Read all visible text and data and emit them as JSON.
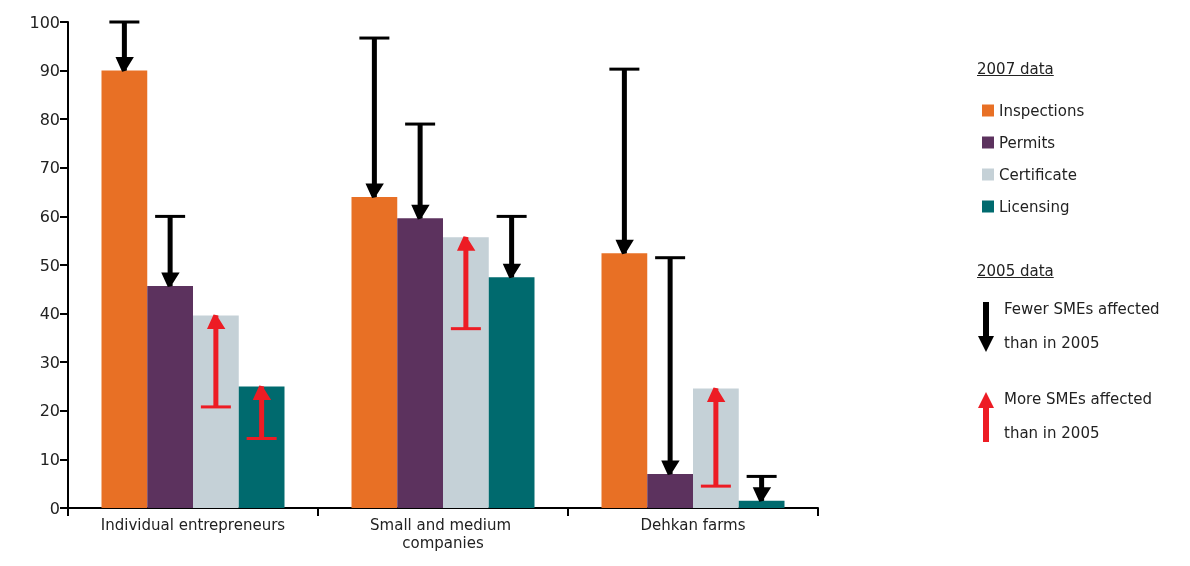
{
  "chart_data": {
    "type": "bar",
    "categories": [
      "Individual entrepreneurs",
      "Small and medium companies",
      "Dehkan farms"
    ],
    "series": [
      {
        "name": "Inspections",
        "color": "#e87025",
        "values": [
          90,
          64,
          52.4
        ],
        "errors": [
          [
            90,
            100
          ],
          [
            64,
            96.7
          ],
          [
            52.4,
            90.3
          ]
        ]
      },
      {
        "name": "Permits",
        "color": "#5c325e",
        "values": [
          45.7,
          59.6,
          7.0
        ],
        "errors": [
          [
            45.7,
            60
          ],
          [
            59.6,
            79
          ],
          [
            7.0,
            51.5
          ]
        ]
      },
      {
        "name": "Certificate",
        "color": "#c5d1d7",
        "values": [
          39.6,
          55.7,
          24.6
        ],
        "errors": [
          [
            20.8,
            39.6
          ],
          [
            36.9,
            55.7
          ],
          [
            4.5,
            24.6
          ]
        ]
      },
      {
        "name": "Licensing",
        "color": "#006a6e",
        "values": [
          25,
          47.5,
          1.5
        ],
        "errors": [
          [
            14.3,
            25
          ],
          [
            47.5,
            60
          ],
          [
            1.5,
            6.5
          ]
        ]
      }
    ],
    "ylim": [
      0,
      100
    ],
    "yticks": [
      0,
      10,
      20,
      30,
      40,
      50,
      60,
      70,
      80,
      90,
      100
    ],
    "grid": false,
    "legend": "right",
    "legend_title": "2007 data",
    "annotations": [
      "2005 data",
      "Fewer SMEs affected than in 2005",
      "More SMEs affected than in 2005"
    ]
  }
}
